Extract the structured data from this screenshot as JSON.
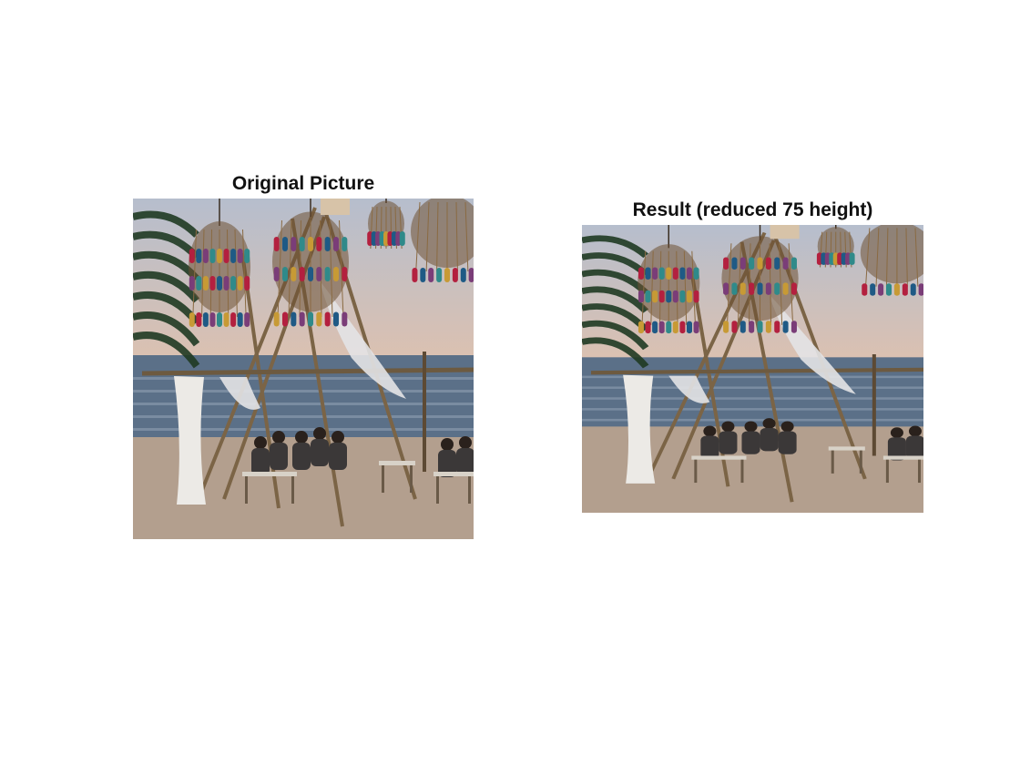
{
  "panels": [
    {
      "title": "Original Picture",
      "image_alt": "beach dinner with hanging lantern decorations"
    },
    {
      "title": "Result (reduced 75 height)",
      "image_alt": "beach dinner with hanging lantern decorations, reduced height"
    }
  ],
  "colors": {
    "sky_top": "#b6becd",
    "sky_warm": "#dcc1b0",
    "sea": "#5b7088",
    "sand": "#b39f8e",
    "tassel_red": "#b3203f",
    "tassel_blue": "#1f5a85",
    "tassel_purple": "#7a3d78",
    "tassel_teal": "#2f8a8a",
    "tassel_gold": "#c79a35",
    "cage": "#8a6a42"
  }
}
